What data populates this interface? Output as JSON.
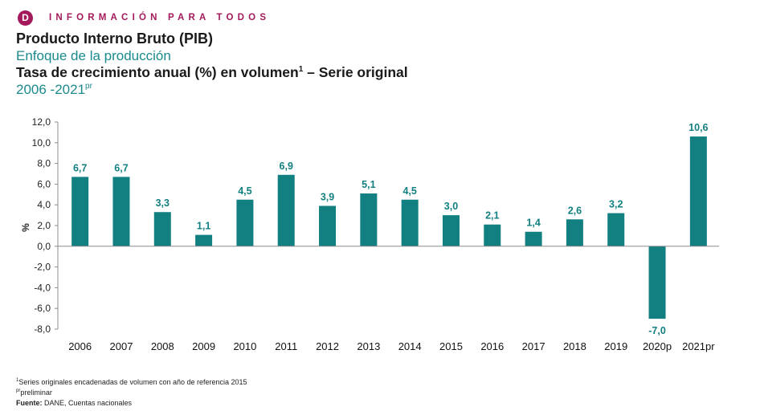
{
  "header": {
    "logo_letter": "D",
    "tagline": "INFORMACIÓN PARA TODOS",
    "brand_color": "#a3195b"
  },
  "titles": {
    "title": "Producto Interno Bruto (PIB)",
    "subtitle": "Enfoque de la producción",
    "heading": "Tasa de crecimiento anual (%) en volumen",
    "heading_sup": "1",
    "heading_suffix": " – Serie original",
    "period": "2006 -2021",
    "period_sup": "pr"
  },
  "chart_data": {
    "type": "bar",
    "categories": [
      "2006",
      "2007",
      "2008",
      "2009",
      "2010",
      "2011",
      "2012",
      "2013",
      "2014",
      "2015",
      "2016",
      "2017",
      "2018",
      "2019",
      "2020p",
      "2021pr"
    ],
    "values": [
      6.7,
      6.7,
      3.3,
      1.1,
      4.5,
      6.9,
      3.9,
      5.1,
      4.5,
      3.0,
      2.1,
      1.4,
      2.6,
      3.2,
      -7.0,
      10.6
    ],
    "data_labels": [
      "6,7",
      "6,7",
      "3,3",
      "1,1",
      "4,5",
      "6,9",
      "3,9",
      "5,1",
      "4,5",
      "3,0",
      "2,1",
      "1,4",
      "2,6",
      "3,2",
      "-7,0",
      "10,6"
    ],
    "ylabel": "%",
    "ylim": [
      -8,
      12
    ],
    "yticks": [
      "12,0",
      "10,0",
      "8,0",
      "6,0",
      "4,0",
      "2,0",
      "0,0",
      "-2,0",
      "-4,0",
      "-6,0",
      "-8,0"
    ],
    "ytick_values": [
      12,
      10,
      8,
      6,
      4,
      2,
      0,
      -2,
      -4,
      -6,
      -8
    ],
    "bar_color": "#127f81",
    "label_color": "#127f81",
    "grid": false
  },
  "footnotes": {
    "note1_sup": "1",
    "note1": "Series originales encadenadas de volumen con año de referencia 2015",
    "note2_sup": "pr",
    "note2": "preliminar",
    "source_label": "Fuente:",
    "source": " DANE, Cuentas nacionales"
  }
}
